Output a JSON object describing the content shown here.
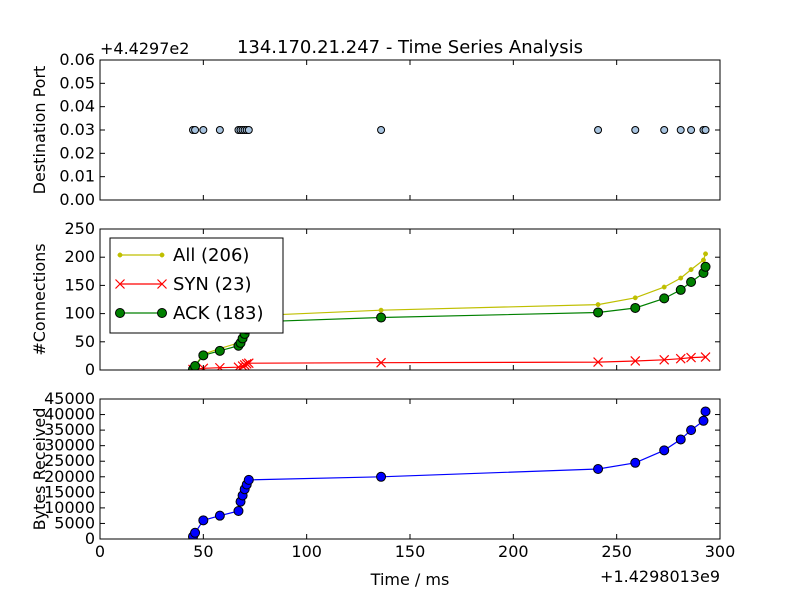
{
  "figure": {
    "title": "134.170.21.247 - Time Series Analysis",
    "xlabel": "Time / ms",
    "x_offset_label": "+1.4298013e9",
    "x_ticks": [
      "0",
      "50",
      "100",
      "150",
      "200",
      "250",
      "300"
    ]
  },
  "chart_data": [
    {
      "type": "scatter",
      "ylabel": "Destination Port",
      "y_offset_label": "+4.4297e2",
      "xlim": [
        0,
        300
      ],
      "ylim": [
        0.0,
        0.06
      ],
      "yticks": [
        "0.00",
        "0.01",
        "0.02",
        "0.03",
        "0.04",
        "0.05",
        "0.06"
      ],
      "grid": false,
      "series": [
        {
          "color": "#a8c4e0",
          "x": [
            45,
            46,
            50,
            58,
            67,
            68,
            69,
            70,
            71,
            72,
            136,
            241,
            259,
            273,
            281,
            286,
            292,
            293
          ],
          "y": [
            0.03,
            0.03,
            0.03,
            0.03,
            0.03,
            0.03,
            0.03,
            0.03,
            0.03,
            0.03,
            0.03,
            0.03,
            0.03,
            0.03,
            0.03,
            0.03,
            0.03,
            0.03
          ]
        }
      ]
    },
    {
      "type": "line",
      "ylabel": "#Connections",
      "xlim": [
        0,
        300
      ],
      "ylim": [
        0,
        250
      ],
      "yticks": [
        "0",
        "50",
        "100",
        "150",
        "200",
        "250"
      ],
      "grid": false,
      "legend_position": "top-left",
      "series": [
        {
          "name": "All (206)",
          "color": "#bfbf00",
          "marker": "dot",
          "x": [
            45,
            46,
            50,
            58,
            67,
            68,
            69,
            70,
            71,
            72,
            136,
            241,
            259,
            273,
            281,
            286,
            292,
            293
          ],
          "y": [
            1,
            8,
            28,
            38,
            48,
            52,
            62,
            70,
            80,
            96,
            106,
            116,
            128,
            147,
            163,
            178,
            195,
            206
          ]
        },
        {
          "name": "SYN (23)",
          "color": "#ff0000",
          "marker": "x",
          "x": [
            45,
            50,
            58,
            67,
            69,
            70,
            71,
            72,
            136,
            241,
            259,
            273,
            281,
            286,
            293
          ],
          "y": [
            1,
            3,
            4,
            5,
            7,
            9,
            11,
            12,
            13,
            14,
            16,
            18,
            20,
            22,
            23
          ]
        },
        {
          "name": "ACK (183)",
          "color": "#008000",
          "marker": "circle",
          "x": [
            45,
            46,
            50,
            58,
            67,
            68,
            69,
            70,
            71,
            72,
            136,
            241,
            259,
            273,
            281,
            286,
            292,
            293
          ],
          "y": [
            1,
            7,
            26,
            34,
            43,
            48,
            56,
            64,
            72,
            85,
            93,
            102,
            110,
            127,
            142,
            156,
            172,
            183
          ]
        }
      ]
    },
    {
      "type": "line",
      "ylabel": "Bytes Received",
      "xlim": [
        0,
        300
      ],
      "ylim": [
        0,
        45000
      ],
      "yticks": [
        "0",
        "5000",
        "10000",
        "15000",
        "20000",
        "25000",
        "30000",
        "35000",
        "40000",
        "45000"
      ],
      "grid": false,
      "series": [
        {
          "color": "#0000ff",
          "marker": "circle",
          "x": [
            45,
            46,
            50,
            58,
            67,
            68,
            69,
            70,
            71,
            72,
            136,
            241,
            259,
            273,
            281,
            286,
            292,
            293
          ],
          "y": [
            800,
            2000,
            6000,
            7500,
            9000,
            12000,
            14000,
            16000,
            17500,
            19000,
            20000,
            22500,
            24500,
            28500,
            32000,
            35000,
            38000,
            41000
          ]
        }
      ]
    }
  ]
}
